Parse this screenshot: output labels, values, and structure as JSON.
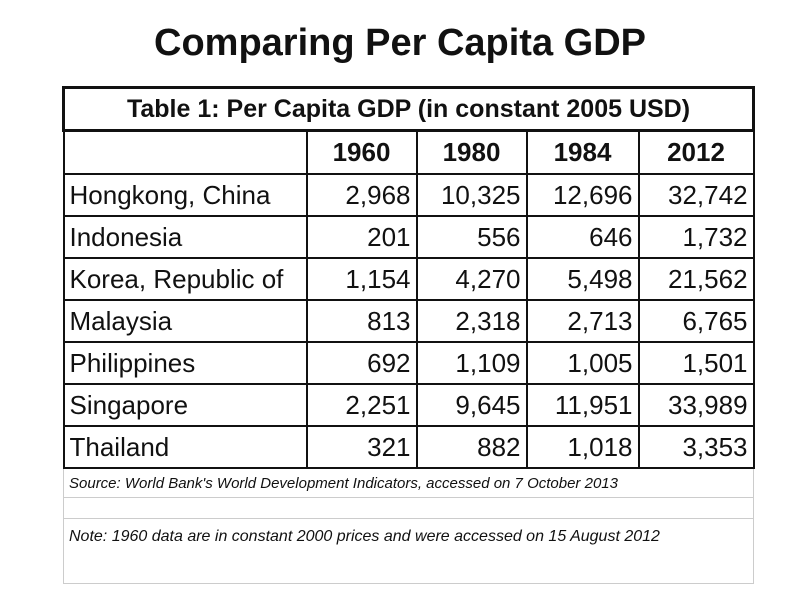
{
  "title": "Comparing Per Capita GDP",
  "table": {
    "caption": "Table 1: Per Capita GDP (in constant 2005 USD)",
    "header": [
      "1960",
      "1980",
      "1984",
      "2012"
    ],
    "rows": [
      [
        "Hongkong, China",
        "2,968",
        "10,325",
        "12,696",
        "32,742"
      ],
      [
        "Indonesia",
        "201",
        "556",
        "646",
        "1,732"
      ],
      [
        "Korea, Republic of",
        "1,154",
        "4,270",
        "5,498",
        "21,562"
      ],
      [
        "Malaysia",
        "813",
        "2,318",
        "2,713",
        "6,765"
      ],
      [
        "Philippines",
        "692",
        "1,109",
        "1,005",
        "1,501"
      ],
      [
        "Singapore",
        "2,251",
        "9,645",
        "11,951",
        "33,989"
      ],
      [
        "Thailand",
        "321",
        "882",
        "1,018",
        "3,353"
      ]
    ],
    "source": "Source: World Bank's World Development Indicators, accessed on 7 October 2013",
    "note": "Note: 1960 data are in constant 2000 prices and were accessed on 15 August 2012"
  }
}
